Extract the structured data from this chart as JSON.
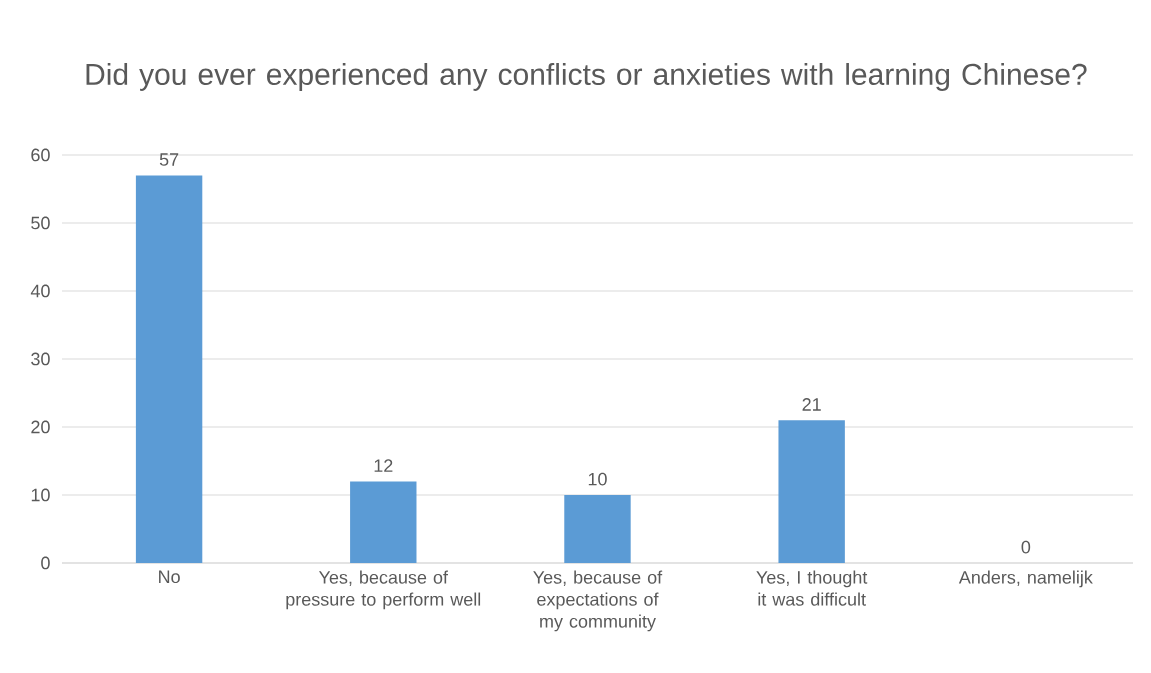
{
  "chart_data": {
    "type": "bar",
    "title": "Did you ever experienced any conflicts or anxieties with learning Chinese?",
    "categories": [
      "No",
      "Yes, because of pressure to perform well",
      "Yes, because of expectations of my community",
      "Yes, I thought it was difficult",
      "Anders, namelijk"
    ],
    "values": [
      57,
      12,
      10,
      21,
      0
    ],
    "color": "#5b9bd5",
    "ylim": [
      0,
      60
    ],
    "yticks": [
      0,
      10,
      20,
      30,
      40,
      50,
      60
    ],
    "grid": "y",
    "data_labels": true
  }
}
